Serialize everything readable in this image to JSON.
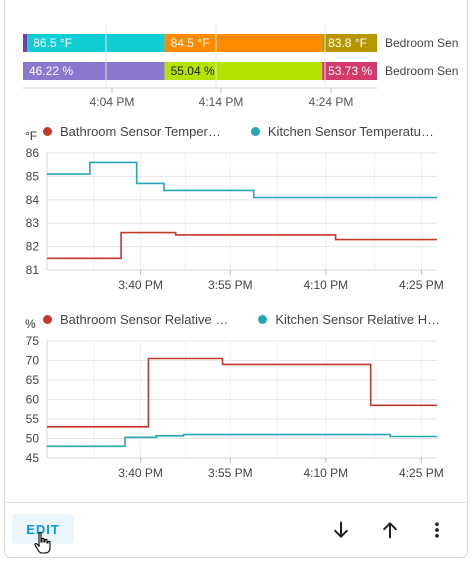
{
  "timeline": {
    "rows": [
      {
        "label": "Bedroom Sen",
        "segments": [
          {
            "value": "",
            "color": "#7a3ca8"
          },
          {
            "value": "86.5 °F",
            "color": "#10ced4"
          },
          {
            "value": "84.5 °F",
            "color": "#ff8a00"
          },
          {
            "value": "83.8 °F",
            "color": "#b89600"
          }
        ]
      },
      {
        "label": "Bedroom Sen",
        "segments": [
          {
            "value": "46.22 %",
            "color": "#8a78cf"
          },
          {
            "value": "55.04 %",
            "color": "#b4e300"
          },
          {
            "value": "53.73 %",
            "color": "#d23a6a"
          }
        ]
      }
    ],
    "ticks": [
      "4:04 PM",
      "4:14 PM",
      "4:24 PM"
    ]
  },
  "chart_data": [
    {
      "type": "line",
      "ylabel": "°F",
      "ylim": [
        81,
        86
      ],
      "yticks": [
        "86",
        "85",
        "84",
        "83",
        "82",
        "81"
      ],
      "xticks": [
        "3:40 PM",
        "3:55 PM",
        "4:10 PM",
        "4:25 PM"
      ],
      "grid": true,
      "legend_position": "top",
      "series": [
        {
          "name": "Bathroom Sensor Temper…",
          "color": "#c0392b",
          "step": true,
          "points": [
            [
              0.0,
              81.5
            ],
            [
              0.19,
              81.5
            ],
            [
              0.19,
              82.6
            ],
            [
              0.33,
              82.6
            ],
            [
              0.33,
              82.5
            ],
            [
              0.74,
              82.5
            ],
            [
              0.74,
              82.3
            ],
            [
              1.0,
              82.3
            ]
          ]
        },
        {
          "name": "Kitchen Sensor Temperatu…",
          "color": "#26a6b3",
          "step": true,
          "points": [
            [
              0.0,
              85.1
            ],
            [
              0.11,
              85.1
            ],
            [
              0.11,
              85.6
            ],
            [
              0.23,
              85.6
            ],
            [
              0.23,
              84.7
            ],
            [
              0.3,
              84.7
            ],
            [
              0.3,
              84.4
            ],
            [
              0.53,
              84.4
            ],
            [
              0.53,
              84.1
            ],
            [
              1.0,
              84.1
            ]
          ]
        }
      ]
    },
    {
      "type": "line",
      "ylabel": "%",
      "ylim": [
        45,
        75
      ],
      "yticks": [
        "75",
        "70",
        "65",
        "60",
        "55",
        "50",
        "45"
      ],
      "xticks": [
        "3:40 PM",
        "3:55 PM",
        "4:10 PM",
        "4:25 PM"
      ],
      "grid": true,
      "legend_position": "top",
      "series": [
        {
          "name": "Bathroom Sensor Relative …",
          "color": "#c0392b",
          "step": true,
          "points": [
            [
              0.0,
              53
            ],
            [
              0.26,
              53
            ],
            [
              0.26,
              70.5
            ],
            [
              0.45,
              70.5
            ],
            [
              0.45,
              69
            ],
            [
              0.83,
              69
            ],
            [
              0.83,
              58.5
            ],
            [
              1.0,
              58.5
            ]
          ]
        },
        {
          "name": "Kitchen Sensor Relative H…",
          "color": "#26a6b3",
          "step": true,
          "points": [
            [
              0.0,
              48
            ],
            [
              0.2,
              48
            ],
            [
              0.2,
              50.3
            ],
            [
              0.28,
              50.3
            ],
            [
              0.28,
              50.7
            ],
            [
              0.35,
              50.7
            ],
            [
              0.35,
              51
            ],
            [
              0.88,
              51
            ],
            [
              0.88,
              50.5
            ],
            [
              1.0,
              50.5
            ]
          ]
        }
      ]
    }
  ],
  "toolbar": {
    "edit_label": "EDIT",
    "download_icon": "arrow-down-icon",
    "upload_icon": "arrow-up-icon",
    "more_icon": "more-vert-icon"
  }
}
